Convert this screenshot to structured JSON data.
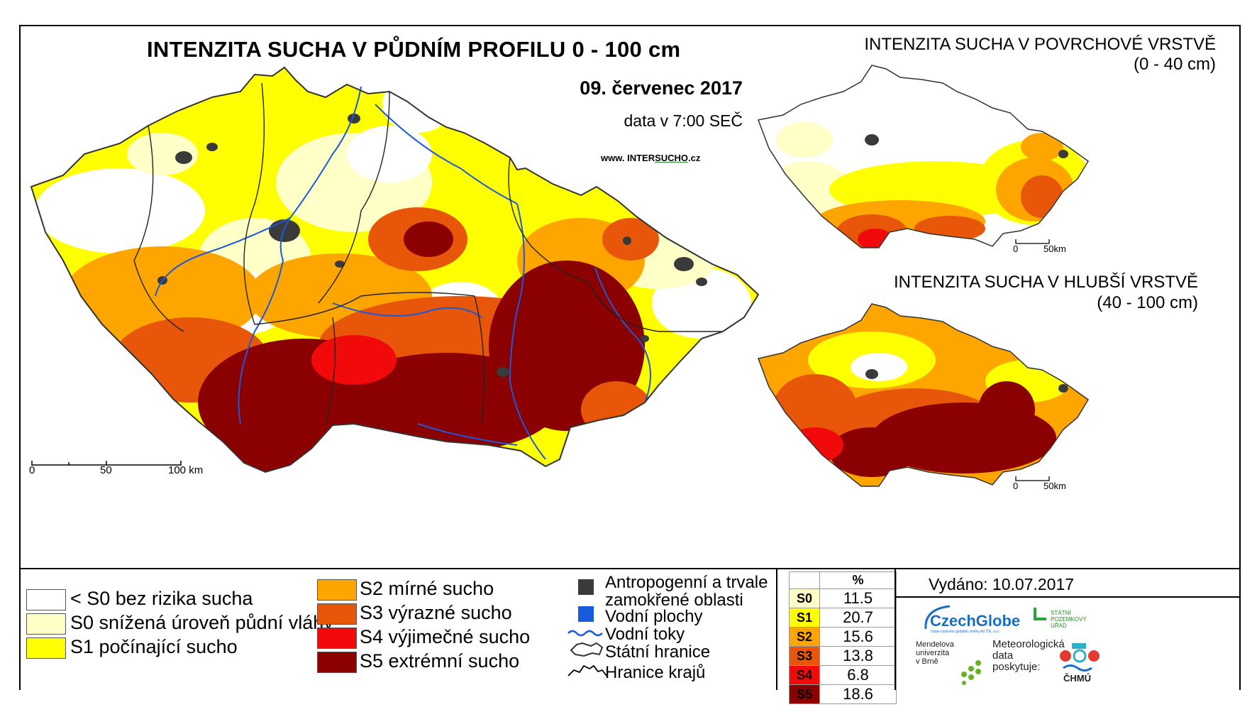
{
  "title": "INTENZITA SUCHA V PŮDNÍM PROFILU 0 - 100 cm",
  "date": "09. červenec 2017",
  "data_time": "data v 7:00 SEČ",
  "website": {
    "prefix": "www. INTER",
    "brand": "SUCHO",
    "suffix": ".cz"
  },
  "main_map": {
    "scale": {
      "labels": [
        "0",
        "50",
        "100 km"
      ]
    }
  },
  "inset_top": {
    "title": "INTENZITA SUCHA V POVRCHOVÉ VRSTVĚ",
    "depth": "(0 - 40 cm)",
    "scale": {
      "labels": [
        "0",
        "50km"
      ]
    }
  },
  "inset_bottom": {
    "title": "INTENZITA SUCHA V HLUBŠÍ VRSTVĚ",
    "depth": "(40 - 100 cm)",
    "scale": {
      "labels": [
        "0",
        "50km"
      ]
    }
  },
  "legend": {
    "classes": [
      {
        "label": "< S0 bez rizika sucha",
        "color": "#ffffff"
      },
      {
        "label": "S0 snížená úroveň půdní vláhy",
        "color": "#ffffc8"
      },
      {
        "label": "S1 počínající sucho",
        "color": "#ffff00"
      },
      {
        "label": "S2 mírné sucho",
        "color": "#ffa500"
      },
      {
        "label": "S3 výrazné sucho",
        "color": "#e8560a"
      },
      {
        "label": "S4 výjimečné sucho",
        "color": "#f20a0a"
      },
      {
        "label": "S5 extrémní sucho",
        "color": "#8b0000"
      }
    ],
    "symbols": [
      {
        "label_line1": "Antropogenní a trvale",
        "label_line2": "zamokřené oblasti",
        "icon": "dark-grey-square",
        "color": "#3a3a3a"
      },
      {
        "label": "Vodní plochy",
        "icon": "blue-square",
        "color": "#1a5adc"
      },
      {
        "label": "Vodní toky",
        "icon": "wavy-blue-line",
        "color": "#1a5adc"
      },
      {
        "label": "Státní hranice",
        "icon": "national-border-outline"
      },
      {
        "label": "Hranice krajů",
        "icon": "regional-border-outline"
      }
    ]
  },
  "statistics": {
    "header": "%",
    "rows": [
      {
        "code": "S0",
        "value": "11.5",
        "color": "#ffffc8"
      },
      {
        "code": "S1",
        "value": "20.7",
        "color": "#ffff00"
      },
      {
        "code": "S2",
        "value": "15.6",
        "color": "#ffa500"
      },
      {
        "code": "S3",
        "value": "13.8",
        "color": "#e8560a"
      },
      {
        "code": "S4",
        "value": "6.8",
        "color": "#f20a0a"
      },
      {
        "code": "S5",
        "value": "18.6",
        "color": "#8b0000"
      }
    ]
  },
  "issued": "Vydáno: 10.07.2017",
  "logos": {
    "czechglobe": "CzechGlobe",
    "czechglobe_sub": "Ústav výzkumu globální změny AV ČR, v.v.i.",
    "spu": [
      "STÁTNÍ",
      "POZEMKOVÝ",
      "ÚŘAD"
    ],
    "mendelu": [
      "Mendelova",
      "univerzita",
      "v Brně"
    ],
    "meteo": [
      "Meteorologická",
      "data",
      "poskytuje:"
    ],
    "chmu": "ČHMÚ"
  }
}
